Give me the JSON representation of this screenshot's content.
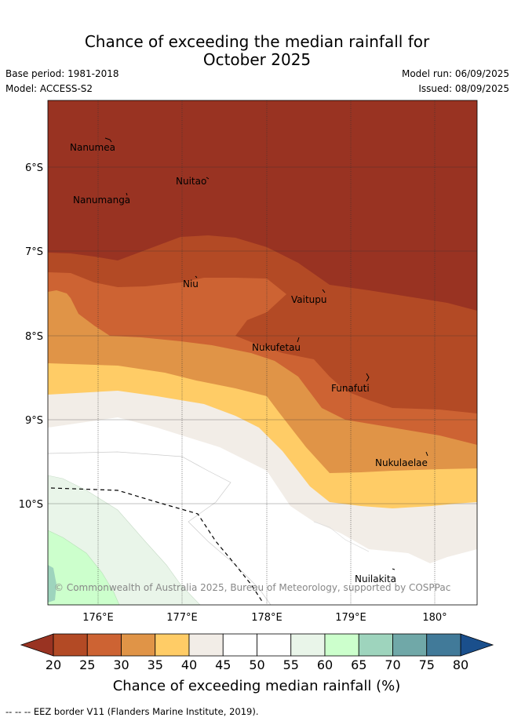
{
  "title": {
    "line1": "Chance of exceeding the median rainfall for",
    "line2": "October 2025"
  },
  "meta": {
    "base_period": "Base period: 1981-2018",
    "model": "Model: ACCESS-S2",
    "model_run": "Model run: 06/09/2025",
    "issued": "Issued: 08/09/2025"
  },
  "map": {
    "lat_labels": [
      "6°S",
      "7°S",
      "8°S",
      "9°S",
      "10°S"
    ],
    "lon_labels": [
      "176°E",
      "177°E",
      "178°E",
      "179°E",
      "180°"
    ],
    "places": [
      "Nanumea",
      "Nuitao",
      "Nanumanga",
      "Niu",
      "Vaitupu",
      "Nukufetau",
      "Funafuti",
      "Nukulaelae",
      "Nuilakita"
    ],
    "copyright": "© Commonwealth of Australia 2025, Bureau of Meteorology, supported by COSPPac"
  },
  "colorbar": {
    "ticks": [
      "20",
      "25",
      "30",
      "35",
      "40",
      "45",
      "50",
      "55",
      "60",
      "65",
      "70",
      "75",
      "80"
    ],
    "colors": [
      "#b34a25",
      "#cd6333",
      "#e09447",
      "#ffcc66",
      "#f2ede7",
      "#ffffff",
      "#ffffff",
      "#e9f5e9",
      "#ccffcc",
      "#9ed4bd",
      "#70a8a8",
      "#417a99"
    ],
    "under_color": "#993322",
    "over_color": "#1a4f8c",
    "label": "Chance of exceeding median rainfall (%)"
  },
  "footnote": "--  --  -- EEZ border V11 (Flanders Marine Institute, 2019)."
}
